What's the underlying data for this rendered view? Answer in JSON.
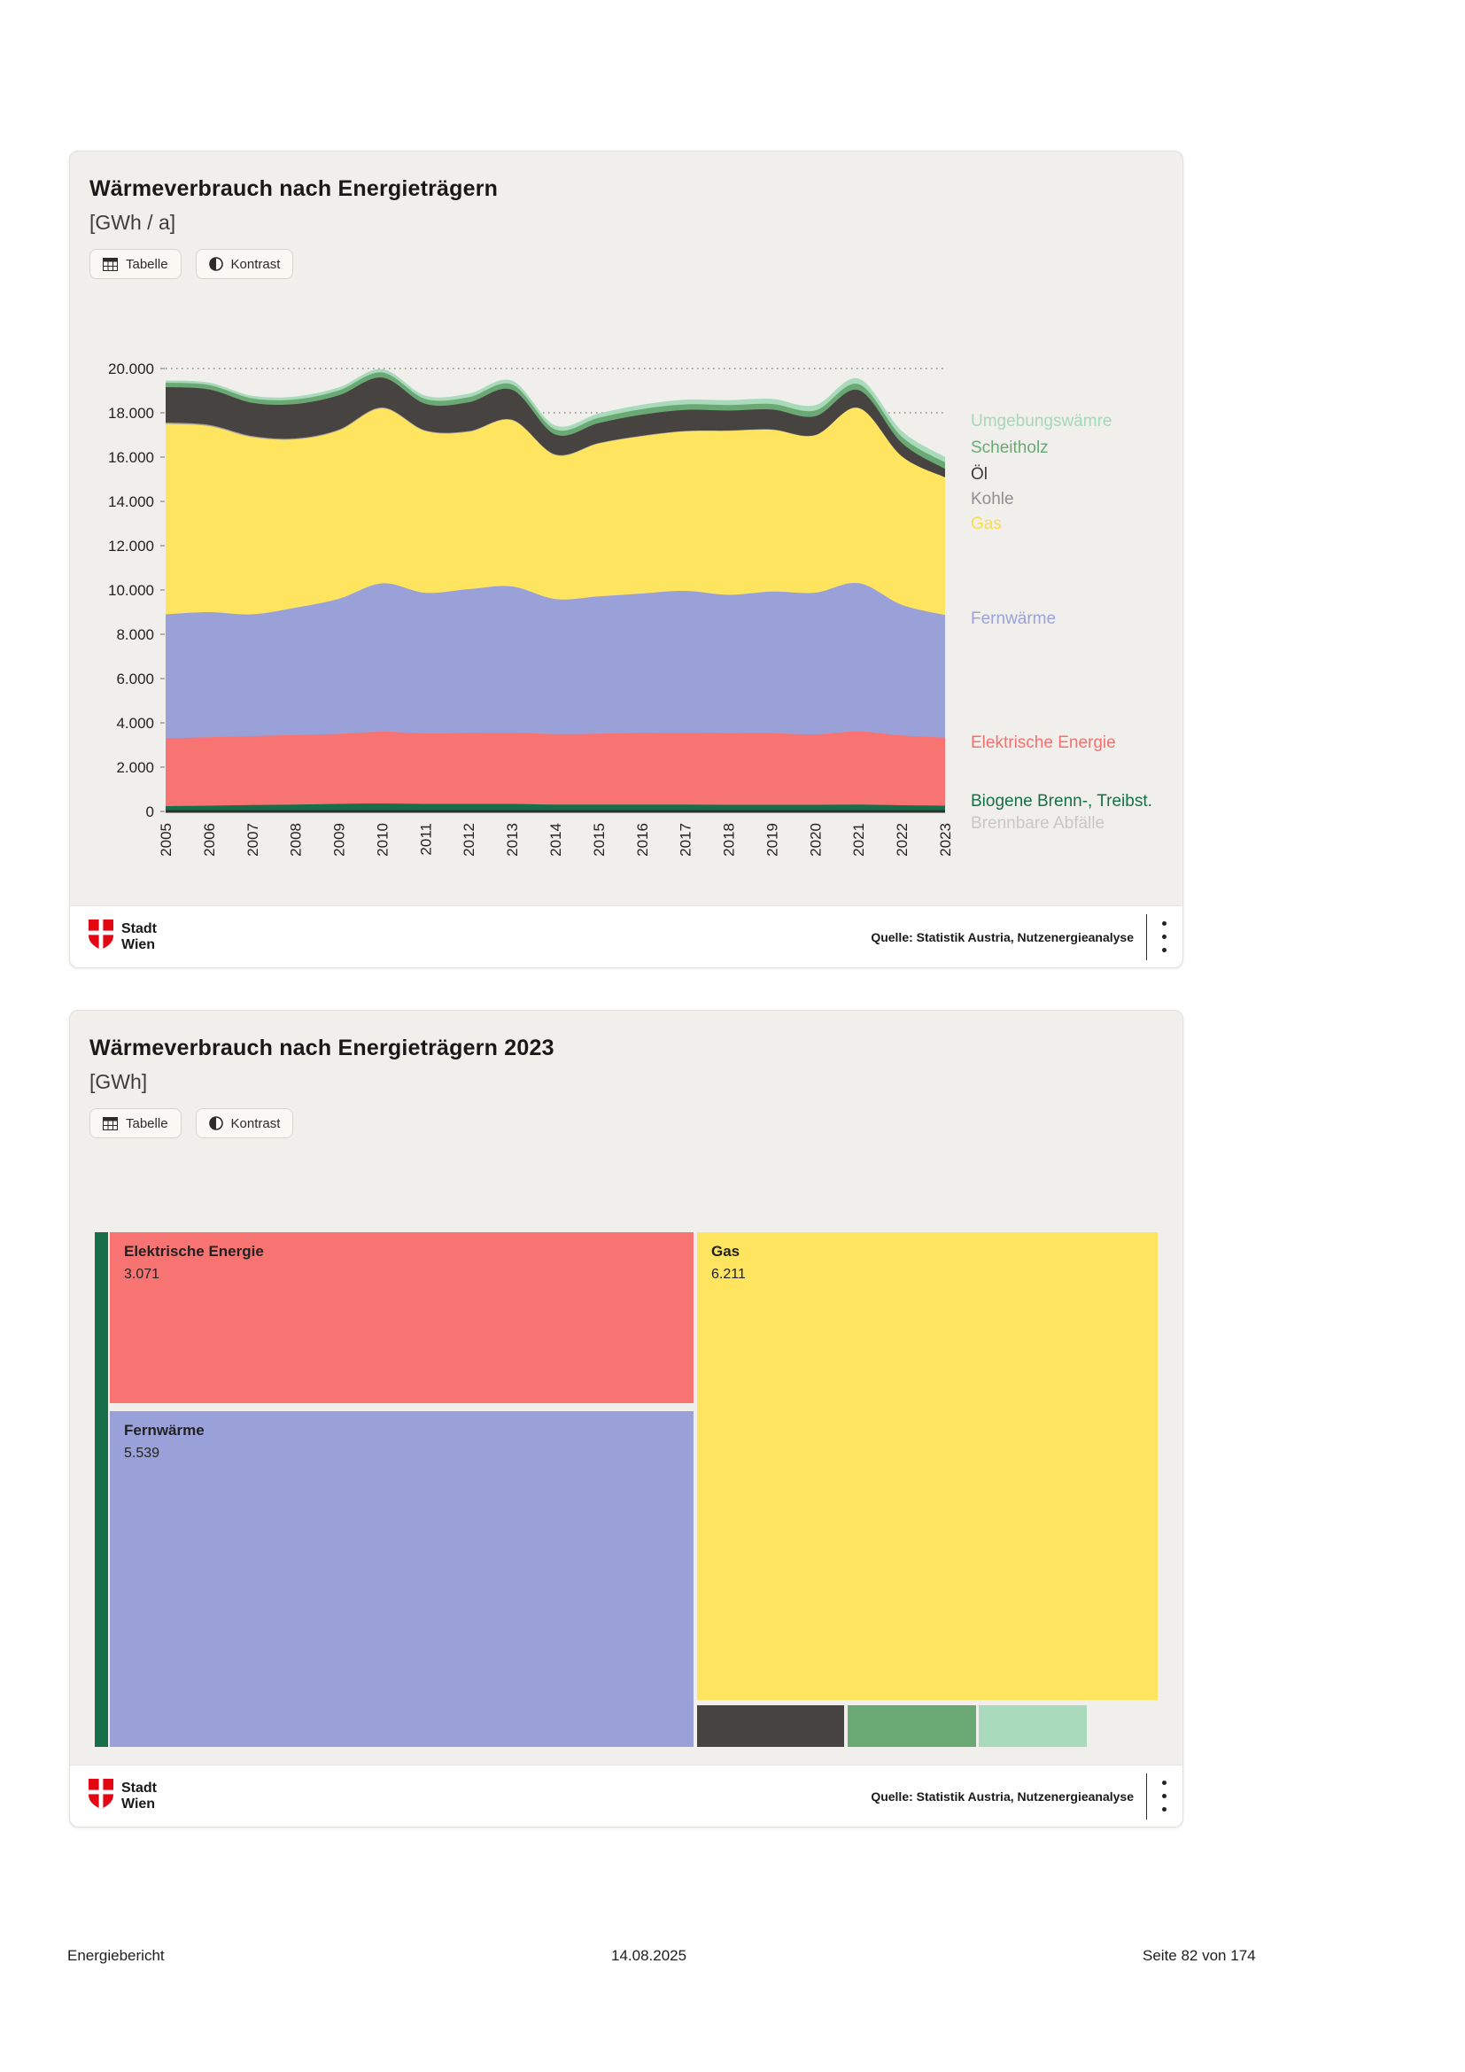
{
  "chart1": {
    "title": "Wärmeverbrauch nach Energieträgern",
    "subtitle": "[GWh / a]",
    "buttons": {
      "table": "Tabelle",
      "contrast": "Kontrast"
    },
    "source": "Quelle: Statistik Austria, Nutzenergieanalyse",
    "logo": {
      "line1": "Stadt",
      "line2": "Wien"
    }
  },
  "chart2": {
    "title": "Wärmeverbrauch nach Energieträgern 2023",
    "subtitle": "[GWh]",
    "buttons": {
      "table": "Tabelle",
      "contrast": "Kontrast"
    },
    "source": "Quelle: Statistik Austria, Nutzenergieanalyse",
    "logo": {
      "line1": "Stadt",
      "line2": "Wien"
    }
  },
  "page_footer": {
    "left": "Energiebericht",
    "center": "14.08.2025",
    "right": "Seite 82 von 174"
  },
  "colors": {
    "wien_red": "#e30613",
    "card_bg": "#f1efeb",
    "axis": "#2f2f2f",
    "grid": "#8c8c8c"
  },
  "chart_data": [
    {
      "type": "area",
      "stacked": true,
      "title": "Wärmeverbrauch nach Energieträgern",
      "ylabel": "GWh / a",
      "xlabel": "",
      "x": [
        2005,
        2006,
        2007,
        2008,
        2009,
        2010,
        2011,
        2012,
        2013,
        2014,
        2015,
        2016,
        2017,
        2018,
        2019,
        2020,
        2021,
        2022,
        2023
      ],
      "ylim": [
        0,
        20000
      ],
      "ytick_step": 2000,
      "grid": "dotted-horizontal",
      "legend_position": "right",
      "series": [
        {
          "name": "Brennbare Abfälle",
          "color": "#c8c6c3",
          "label_color": "#c9c7c3",
          "values": [
            60,
            60,
            60,
            60,
            60,
            60,
            60,
            60,
            60,
            60,
            60,
            60,
            60,
            60,
            60,
            60,
            60,
            60,
            60
          ]
        },
        {
          "name": "Biogene Brenn-, Treibst.",
          "color": "#166f48",
          "label_color": "#166f48",
          "values": [
            180,
            200,
            230,
            250,
            280,
            300,
            280,
            280,
            280,
            250,
            250,
            250,
            250,
            240,
            240,
            240,
            250,
            220,
            200
          ]
        },
        {
          "name": "Elektrische Energie",
          "color": "#f87473",
          "label_color": "#f4716f",
          "values": [
            3060,
            3090,
            3110,
            3140,
            3160,
            3240,
            3180,
            3200,
            3220,
            3180,
            3200,
            3230,
            3250,
            3230,
            3230,
            3180,
            3300,
            3150,
            3071
          ]
        },
        {
          "name": "Fernwärme",
          "color": "#99a1d8",
          "label_color": "#9aa2d9",
          "values": [
            5600,
            5650,
            5500,
            5750,
            6100,
            6700,
            6350,
            6500,
            6600,
            6100,
            6200,
            6300,
            6400,
            6250,
            6400,
            6400,
            6700,
            5900,
            5539
          ]
        },
        {
          "name": "Gas",
          "color": "#ffe55f",
          "label_color": "#f6dd4e",
          "values": [
            8600,
            8400,
            8000,
            7600,
            7600,
            7900,
            7300,
            7100,
            7500,
            6500,
            6900,
            7100,
            7200,
            7400,
            7300,
            7100,
            7900,
            6700,
            6211
          ]
        },
        {
          "name": "Kohle",
          "color": "#a5a3a0",
          "label_color": "#8e9094",
          "values": [
            60,
            55,
            50,
            45,
            40,
            40,
            35,
            35,
            30,
            30,
            25,
            25,
            20,
            20,
            20,
            15,
            15,
            10,
            5
          ]
        },
        {
          "name": "Öl",
          "color": "#474340",
          "label_color": "#3a3a3a",
          "values": [
            1600,
            1600,
            1500,
            1550,
            1550,
            1350,
            1200,
            1300,
            1350,
            900,
            900,
            950,
            950,
            900,
            900,
            850,
            800,
            600,
            380
          ]
        },
        {
          "name": "Scheitholz",
          "color": "#6aa974",
          "label_color": "#69a973",
          "values": [
            200,
            200,
            200,
            210,
            220,
            230,
            220,
            230,
            240,
            230,
            240,
            250,
            250,
            250,
            250,
            260,
            270,
            280,
            290
          ]
        },
        {
          "name": "Umgebungswämre",
          "color": "#a8dabb",
          "label_color": "#a5d8b6",
          "values": [
            100,
            110,
            120,
            130,
            140,
            150,
            150,
            160,
            170,
            180,
            190,
            200,
            210,
            220,
            230,
            240,
            250,
            260,
            250
          ]
        }
      ]
    },
    {
      "type": "treemap",
      "title": "Wärmeverbrauch nach Energieträgern 2023",
      "ylabel": "GWh",
      "items": [
        {
          "label": "Elektrische Energie",
          "value": 3071,
          "value_label": "3.071",
          "color": "#f87473",
          "labeled": true
        },
        {
          "label": "Fernwärme",
          "value": 5539,
          "value_label": "5.539",
          "color": "#99a1d8",
          "labeled": true
        },
        {
          "label": "Gas",
          "value": 6211,
          "value_label": "6.211",
          "color": "#ffe55f",
          "labeled": true
        },
        {
          "label": "Öl",
          "value": 380,
          "color": "#474340",
          "labeled": false
        },
        {
          "label": "Scheitholz",
          "value": 290,
          "color": "#6aa974",
          "labeled": false
        },
        {
          "label": "Umgebungswärme",
          "value": 250,
          "color": "#a8dabb",
          "labeled": false
        },
        {
          "label": "Biogene Brenn-, Treibst.",
          "value": 200,
          "color": "#166f48",
          "labeled": false
        }
      ]
    }
  ]
}
